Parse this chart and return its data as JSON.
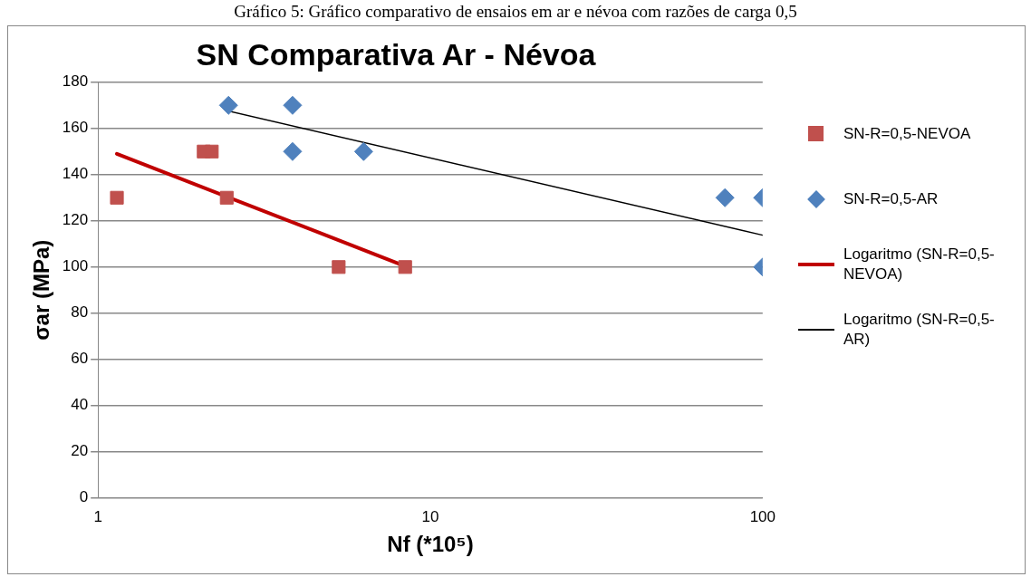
{
  "chart_data": {
    "type": "scatter",
    "title": "SN Comparativa Ar - Névoa",
    "annotations": [
      "Gráfico 5: Gráfico comparativo de ensaios em ar e névoa com razões de carga 0,5"
    ],
    "xlabel": "Nf (*10⁵)",
    "ylabel": "σar (MPa)",
    "log": "x",
    "xlim": [
      1,
      100
    ],
    "xticks": [
      1,
      10,
      100
    ],
    "ylim": [
      0,
      180
    ],
    "yticks": [
      0,
      20,
      40,
      60,
      80,
      100,
      120,
      140,
      160,
      180
    ],
    "grid": "y",
    "legend": "right",
    "series": [
      {
        "name": "SN-R=0,5-NEVOA",
        "marker": "square",
        "color": "#c0504d",
        "x": [
          1.14,
          2.08,
          2.2,
          2.44,
          5.3,
          8.4
        ],
        "values": [
          130,
          150,
          150,
          130,
          100,
          100
        ]
      },
      {
        "name": "SN-R=0,5-AR",
        "marker": "diamond",
        "color": "#4f81bd",
        "x": [
          2.47,
          3.85,
          3.85,
          6.3,
          77,
          100,
          100
        ],
        "values": [
          170,
          170,
          150,
          150,
          130,
          130,
          100
        ]
      },
      {
        "name": "Logaritmo (SN-R=0,5-NEVOA)",
        "type": "line",
        "marker": "none",
        "line_style": "solid",
        "color": "#c00000",
        "x": [
          1.14,
          8.4
        ],
        "values": [
          149,
          100.4
        ]
      },
      {
        "name": "Logaritmo (SN-R=0,5-AR)",
        "type": "line",
        "marker": "none",
        "line_style": "solid",
        "color": "#000000",
        "x": [
          2.47,
          100
        ],
        "values": [
          167.5,
          113.8
        ]
      }
    ]
  }
}
